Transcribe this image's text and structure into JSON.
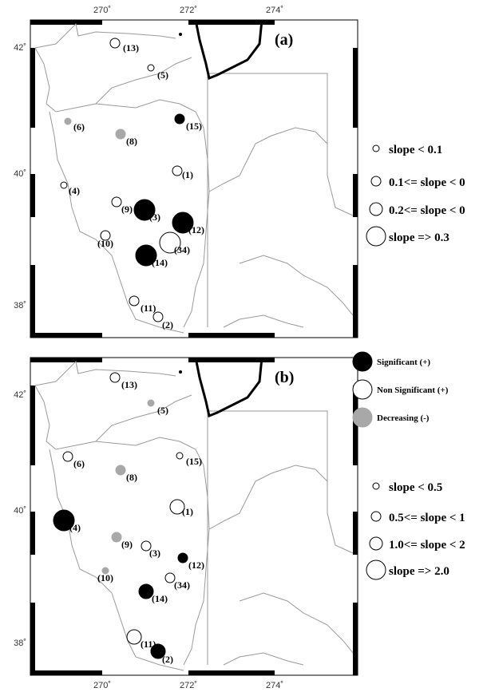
{
  "ticks": {
    "x": [
      "270˚",
      "272˚",
      "274˚"
    ],
    "y": [
      "42˚",
      "40˚",
      "38˚"
    ]
  },
  "panels": [
    {
      "letter": "(a)",
      "stations": [
        {
          "label": "(13)",
          "type": "nonsig",
          "size": 2
        },
        {
          "label": "(5)",
          "type": "nonsig",
          "size": 1
        },
        {
          "label": "(15)",
          "type": "sig",
          "size": 2
        },
        {
          "label": "(6)",
          "type": "dec",
          "size": 1
        },
        {
          "label": "(8)",
          "type": "dec",
          "size": 2
        },
        {
          "label": "(1)",
          "type": "nonsig",
          "size": 2
        },
        {
          "label": "(4)",
          "type": "nonsig",
          "size": 1
        },
        {
          "label": "(9)",
          "type": "nonsig",
          "size": 2
        },
        {
          "label": "(3)",
          "type": "sig",
          "size": 4
        },
        {
          "label": "(12)",
          "type": "sig",
          "size": 4
        },
        {
          "label": "(10)",
          "type": "nonsig",
          "size": 2
        },
        {
          "label": "(34)",
          "type": "nonsig",
          "size": 4
        },
        {
          "label": "(14)",
          "type": "sig",
          "size": 4
        },
        {
          "label": "(11)",
          "type": "nonsig",
          "size": 2
        },
        {
          "label": "(2)",
          "type": "nonsig",
          "size": 2
        }
      ]
    },
    {
      "letter": "(b)",
      "stations": [
        {
          "label": "(13)",
          "type": "nonsig",
          "size": 2
        },
        {
          "label": "(5)",
          "type": "dec",
          "size": 1
        },
        {
          "label": "(15)",
          "type": "nonsig",
          "size": 1
        },
        {
          "label": "(6)",
          "type": "nonsig",
          "size": 2
        },
        {
          "label": "(8)",
          "type": "dec",
          "size": 2
        },
        {
          "label": "(1)",
          "type": "nonsig",
          "size": 3
        },
        {
          "label": "(4)",
          "type": "sig",
          "size": 4
        },
        {
          "label": "(9)",
          "type": "dec",
          "size": 2
        },
        {
          "label": "(3)",
          "type": "nonsig",
          "size": 2
        },
        {
          "label": "(12)",
          "type": "sig",
          "size": 2
        },
        {
          "label": "(10)",
          "type": "dec",
          "size": 1
        },
        {
          "label": "(34)",
          "type": "nonsig",
          "size": 2
        },
        {
          "label": "(14)",
          "type": "sig",
          "size": 3
        },
        {
          "label": "(11)",
          "type": "nonsig",
          "size": 3
        },
        {
          "label": "(2)",
          "type": "sig",
          "size": 3
        }
      ]
    }
  ],
  "legend_a_sizes": [
    "slope < 0.1",
    "0.1<= slope < 0",
    "0.2<= slope < 0",
    "slope => 0.3"
  ],
  "legend_b_sizes": [
    "slope < 0.5",
    "0.5<= slope < 1",
    "1.0<= slope < 2",
    "slope => 2.0"
  ],
  "legend_types": [
    "Significant (+)",
    "Non Significant (+)",
    "Decreasing (-)"
  ],
  "colors": {
    "significant": "#000000",
    "non_significant": "#ffffff",
    "decreasing": "#a8a8a8",
    "lake_outline": "#000000",
    "boundary": "#9a9a9a"
  }
}
